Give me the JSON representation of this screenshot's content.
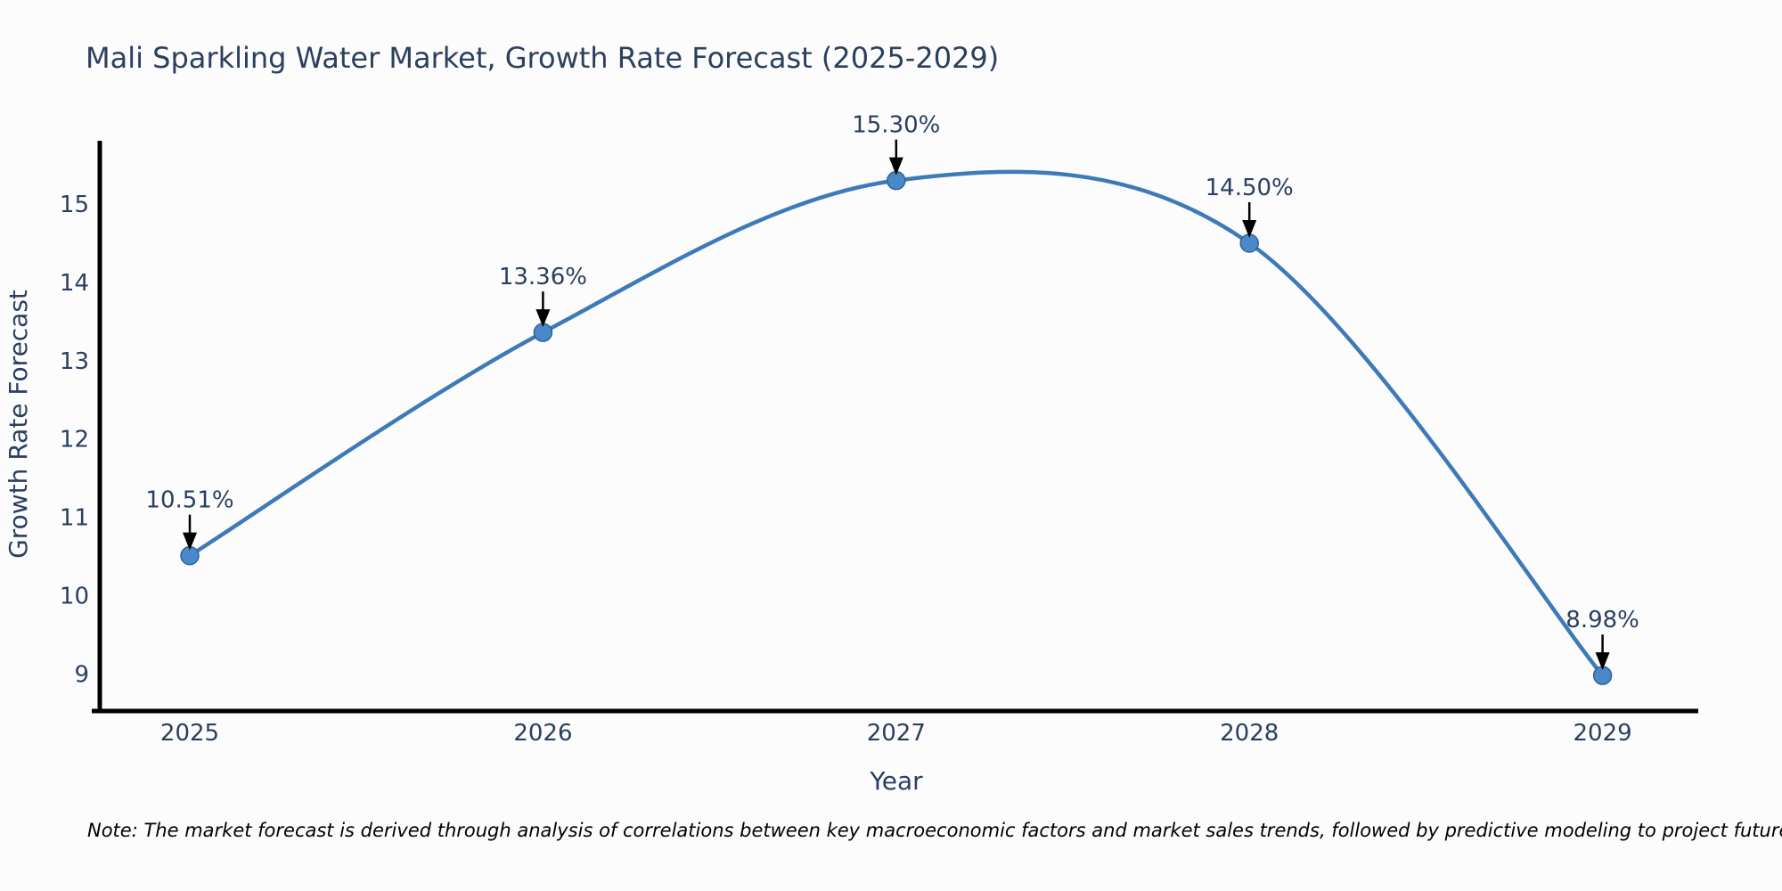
{
  "header": {
    "title": "Mali Sparkling Water Market, Growth Rate Forecast (2025-2029)"
  },
  "footnote": {
    "text": "Note: The market forecast is derived through analysis of correlations between key macroeconomic factors and market sales trends, followed by predictive modeling to project future sales"
  },
  "chart_data": {
    "type": "line",
    "title": "Mali Sparkling Water Market, Growth Rate Forecast (2025-2029)",
    "categories": [
      "2025",
      "2026",
      "2027",
      "2028",
      "2029"
    ],
    "series": [
      {
        "name": "Growth Rate Forecast",
        "values": [
          10.51,
          13.36,
          15.3,
          14.5,
          8.98
        ]
      }
    ],
    "point_labels": [
      "10.51%",
      "13.36%",
      "15.30%",
      "14.50%",
      "8.98%"
    ],
    "xlabel": "Year",
    "ylabel": "Growth Rate Forecast",
    "yticks": [
      9,
      10,
      11,
      12,
      13,
      14,
      15
    ],
    "ylim": [
      8.49,
      15.81
    ],
    "grid": false,
    "legend_visible": false,
    "line_shape": "spline",
    "colors": {
      "line": "#3d7ab8",
      "marker_fill": "#4a89c9",
      "marker_stroke": "#2f6497",
      "axis": "#000000",
      "text": "#2a3f5f",
      "annotation_arrow": "#000000"
    }
  }
}
